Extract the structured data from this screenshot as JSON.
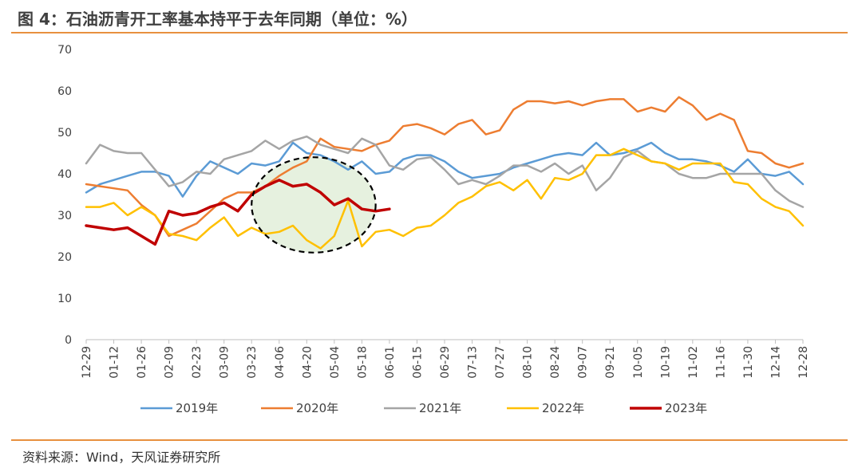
{
  "header": {
    "title": "图 4：石油沥青开工率基本持平于去年同期（单位：%）"
  },
  "footer": {
    "source": "资料来源：Wind，天风证券研究所"
  },
  "colors": {
    "accent_rule": "#E8903F",
    "highlight_fill": "#E2EFD9",
    "highlight_stroke": "#000000"
  },
  "chart_data": {
    "type": "line",
    "title": "",
    "xlabel": "",
    "ylabel": "",
    "ylim": [
      0,
      70
    ],
    "yticks": [
      0,
      10,
      20,
      30,
      40,
      50,
      60,
      70
    ],
    "x_tick_labels": [
      "12-29",
      "01-12",
      "01-26",
      "02-09",
      "02-23",
      "03-09",
      "03-23",
      "04-06",
      "04-20",
      "05-04",
      "05-18",
      "06-01",
      "06-15",
      "06-29",
      "07-13",
      "07-27",
      "08-10",
      "08-24",
      "09-07",
      "09-21",
      "10-05",
      "10-19",
      "11-02",
      "11-16",
      "11-30",
      "12-14",
      "12-28"
    ],
    "x_span_weeks": 52,
    "grid": false,
    "legend_position": "bottom",
    "annotation": {
      "type": "dashed-ellipse",
      "center_week": 16.5,
      "center_value": 32.5,
      "week_radius": 4.5,
      "value_radius": 11.5
    },
    "series": [
      {
        "name": "2019年",
        "color": "#5B9BD5",
        "width": 2.5,
        "values": [
          35.5,
          37.5,
          38.5,
          39.5,
          40.5,
          40.5,
          39.5,
          34.5,
          39.5,
          43,
          41.5,
          40,
          42.5,
          42,
          43,
          47.5,
          45,
          44.5,
          43,
          41,
          43,
          40,
          40.5,
          43.5,
          44.5,
          44.5,
          43,
          40.5,
          39,
          39.5,
          40,
          41.5,
          42.5,
          43.5,
          44.5,
          45,
          44.5,
          47.5,
          44.5,
          45,
          46,
          47.5,
          45,
          43.5,
          43.5,
          43,
          42,
          40.5,
          43.5,
          40,
          39.5,
          40.5,
          37.5
        ]
      },
      {
        "name": "2020年",
        "color": "#ED7D31",
        "width": 2.5,
        "values": [
          37.5,
          37,
          36.5,
          36,
          32.5,
          30,
          25,
          26.5,
          28,
          31,
          34,
          35.5,
          35.5,
          37,
          39.5,
          41.5,
          43,
          48.5,
          46.5,
          46,
          45.5,
          47,
          48,
          51.5,
          52,
          51,
          49.5,
          52,
          53,
          49.5,
          50.5,
          55.5,
          57.5,
          57.5,
          57,
          57.5,
          56.5,
          57.5,
          58,
          58,
          55,
          56,
          55,
          58.5,
          56.5,
          53,
          54.5,
          53,
          45.5,
          45,
          42.5,
          41.5,
          42.5
        ]
      },
      {
        "name": "2021年",
        "color": "#A5A5A5",
        "width": 2.5,
        "values": [
          42.5,
          47,
          45.5,
          45,
          45,
          41,
          37,
          38,
          40.5,
          40,
          43.5,
          44.5,
          45.5,
          48,
          46,
          48,
          49,
          47,
          46,
          45,
          48.5,
          47,
          42,
          41,
          43.5,
          44,
          41,
          37.5,
          38.5,
          37.5,
          39.5,
          42,
          42,
          40.5,
          42.5,
          40,
          42,
          36,
          39,
          44,
          45.5,
          43,
          42.5,
          40,
          39,
          39,
          40,
          40,
          40,
          40,
          36,
          33.5,
          32
        ]
      },
      {
        "name": "2022年",
        "color": "#FFC000",
        "width": 2.5,
        "values": [
          32,
          32,
          33,
          30,
          32,
          30,
          25.5,
          25,
          24,
          27,
          29.5,
          25,
          27,
          25.5,
          26,
          27.5,
          24,
          22,
          25,
          33.5,
          22.5,
          26,
          26.5,
          25,
          27,
          27.5,
          30,
          33,
          34.5,
          37,
          38,
          36,
          38.5,
          34,
          39,
          38.5,
          40,
          44.5,
          44.5,
          46,
          44.5,
          43,
          42.5,
          41,
          42.5,
          42.5,
          42.5,
          38,
          37.5,
          34,
          32,
          31,
          27.5
        ]
      },
      {
        "name": "2023年",
        "color": "#C00000",
        "width": 3.5,
        "values": [
          27.5,
          27,
          26.5,
          27,
          25,
          23,
          31,
          30,
          30.5,
          32,
          33,
          31,
          35,
          37,
          38.5,
          37,
          37.5,
          35.5,
          32.5,
          34,
          31.5,
          31,
          31.5
        ]
      }
    ]
  }
}
